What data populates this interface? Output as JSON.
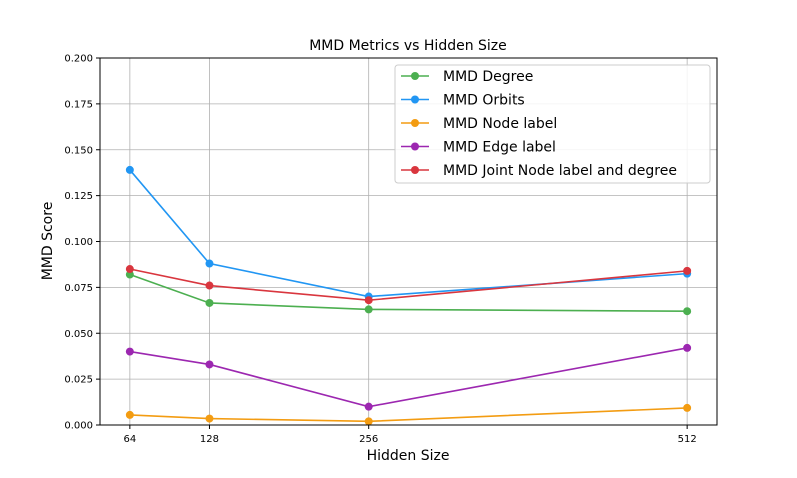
{
  "chart_data": {
    "type": "line",
    "title": "MMD Metrics vs Hidden Size",
    "xlabel": "Hidden Size",
    "ylabel": "MMD Score",
    "x": [
      64,
      128,
      256,
      512
    ],
    "x_tick_labels": [
      "64",
      "128",
      "256",
      "512"
    ],
    "ylim": [
      0,
      0.2
    ],
    "y_ticks": [
      0,
      0.025,
      0.05,
      0.075,
      0.1,
      0.125,
      0.15,
      0.175,
      0.2
    ],
    "y_tick_labels": [
      "0.000",
      "0.025",
      "0.050",
      "0.075",
      "0.100",
      "0.125",
      "0.150",
      "0.175",
      "0.200"
    ],
    "grid": true,
    "legend_position": "top-right",
    "series": [
      {
        "name": "MMD Degree",
        "color": "#4caf50",
        "values": [
          0.082,
          0.0665,
          0.063,
          0.062
        ]
      },
      {
        "name": "MMD Orbits",
        "color": "#2196f3",
        "values": [
          0.139,
          0.088,
          0.07,
          0.0825
        ]
      },
      {
        "name": "MMD Node label",
        "color": "#f39c12",
        "values": [
          0.0055,
          0.0035,
          0.002,
          0.0093
        ]
      },
      {
        "name": "MMD Edge label",
        "color": "#9c27b0",
        "values": [
          0.04,
          0.033,
          0.01,
          0.042
        ]
      },
      {
        "name": "MMD Joint Node label and degree",
        "color": "#d9363e",
        "values": [
          0.085,
          0.076,
          0.068,
          0.084
        ]
      }
    ]
  }
}
